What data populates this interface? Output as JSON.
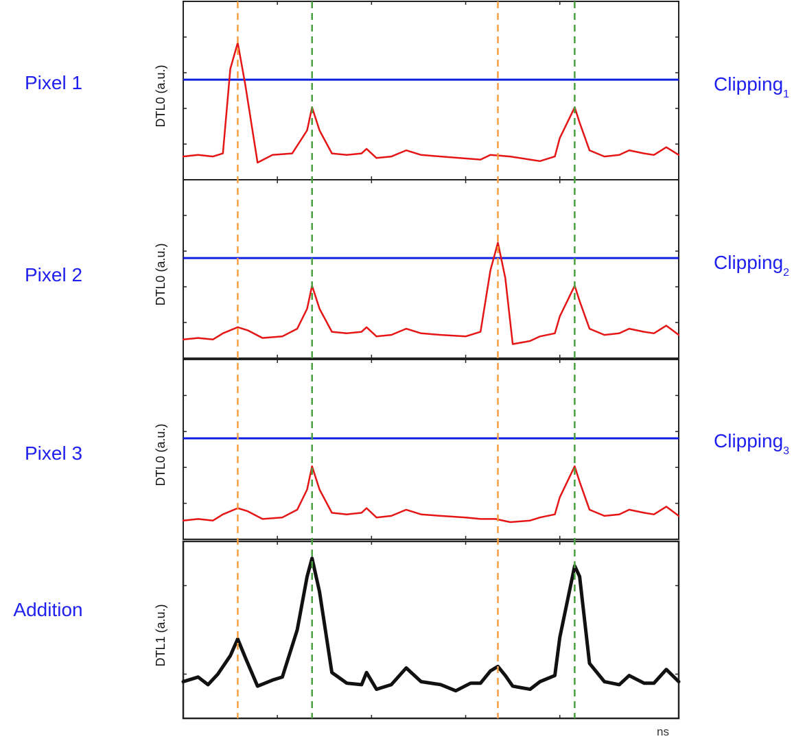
{
  "colors": {
    "label": "#2020ee",
    "clipping": "#1020e0",
    "signal": "#e51515",
    "sum": "#111111",
    "orange_marker": "#f5a040",
    "green_marker": "#4aa040",
    "frame": "#222222"
  },
  "x_unit": "ns",
  "chart_data": [
    {
      "type": "line",
      "row_label": "Pixel 1",
      "ylabel": "DTL0 (a.u.)",
      "clipping_label": "Clipping",
      "clipping_sub": "1",
      "clipping_level": 0.58,
      "series": [
        {
          "values": [
            [
              0,
              0.08
            ],
            [
              0.03,
              0.09
            ],
            [
              0.06,
              0.08
            ],
            [
              0.08,
              0.1
            ],
            [
              0.095,
              0.65
            ],
            [
              0.11,
              0.82
            ],
            [
              0.125,
              0.55
            ],
            [
              0.15,
              0.04
            ],
            [
              0.18,
              0.09
            ],
            [
              0.22,
              0.1
            ],
            [
              0.25,
              0.25
            ],
            [
              0.26,
              0.4
            ],
            [
              0.275,
              0.25
            ],
            [
              0.3,
              0.1
            ],
            [
              0.33,
              0.09
            ],
            [
              0.36,
              0.1
            ],
            [
              0.37,
              0.13
            ],
            [
              0.39,
              0.07
            ],
            [
              0.42,
              0.08
            ],
            [
              0.45,
              0.12
            ],
            [
              0.48,
              0.09
            ],
            [
              0.52,
              0.08
            ],
            [
              0.6,
              0.06
            ],
            [
              0.62,
              0.09
            ],
            [
              0.66,
              0.08
            ],
            [
              0.7,
              0.06
            ],
            [
              0.72,
              0.05
            ],
            [
              0.75,
              0.08
            ],
            [
              0.76,
              0.2
            ],
            [
              0.79,
              0.4
            ],
            [
              0.8,
              0.3
            ],
            [
              0.82,
              0.12
            ],
            [
              0.85,
              0.08
            ],
            [
              0.88,
              0.09
            ],
            [
              0.9,
              0.12
            ],
            [
              0.93,
              0.1
            ],
            [
              0.95,
              0.09
            ],
            [
              0.975,
              0.14
            ],
            [
              1,
              0.09
            ]
          ]
        }
      ]
    },
    {
      "type": "line",
      "row_label": "Pixel 2",
      "ylabel": "DTL0 (a.u.)",
      "clipping_label": "Clipping",
      "clipping_sub": "2",
      "clipping_level": 0.58,
      "series": [
        {
          "values": [
            [
              0,
              0.05
            ],
            [
              0.03,
              0.06
            ],
            [
              0.06,
              0.05
            ],
            [
              0.08,
              0.09
            ],
            [
              0.11,
              0.13
            ],
            [
              0.13,
              0.11
            ],
            [
              0.16,
              0.06
            ],
            [
              0.2,
              0.07
            ],
            [
              0.23,
              0.12
            ],
            [
              0.25,
              0.25
            ],
            [
              0.26,
              0.4
            ],
            [
              0.275,
              0.25
            ],
            [
              0.3,
              0.1
            ],
            [
              0.33,
              0.09
            ],
            [
              0.36,
              0.1
            ],
            [
              0.37,
              0.13
            ],
            [
              0.39,
              0.07
            ],
            [
              0.42,
              0.08
            ],
            [
              0.45,
              0.12
            ],
            [
              0.48,
              0.09
            ],
            [
              0.52,
              0.08
            ],
            [
              0.57,
              0.07
            ],
            [
              0.6,
              0.1
            ],
            [
              0.62,
              0.5
            ],
            [
              0.635,
              0.68
            ],
            [
              0.65,
              0.45
            ],
            [
              0.665,
              0.02
            ],
            [
              0.7,
              0.04
            ],
            [
              0.72,
              0.07
            ],
            [
              0.75,
              0.09
            ],
            [
              0.76,
              0.2
            ],
            [
              0.79,
              0.4
            ],
            [
              0.8,
              0.3
            ],
            [
              0.82,
              0.12
            ],
            [
              0.85,
              0.08
            ],
            [
              0.88,
              0.09
            ],
            [
              0.9,
              0.12
            ],
            [
              0.93,
              0.1
            ],
            [
              0.95,
              0.09
            ],
            [
              0.975,
              0.14
            ],
            [
              1,
              0.08
            ]
          ]
        }
      ]
    },
    {
      "type": "line",
      "row_label": "Pixel 3",
      "ylabel": "DTL0 (a.u.)",
      "clipping_label": "Clipping",
      "clipping_sub": "3",
      "clipping_level": 0.58,
      "series": [
        {
          "values": [
            [
              0,
              0.05
            ],
            [
              0.03,
              0.06
            ],
            [
              0.06,
              0.05
            ],
            [
              0.08,
              0.09
            ],
            [
              0.11,
              0.13
            ],
            [
              0.13,
              0.11
            ],
            [
              0.16,
              0.06
            ],
            [
              0.2,
              0.07
            ],
            [
              0.23,
              0.12
            ],
            [
              0.25,
              0.25
            ],
            [
              0.26,
              0.4
            ],
            [
              0.275,
              0.25
            ],
            [
              0.3,
              0.1
            ],
            [
              0.33,
              0.09
            ],
            [
              0.36,
              0.1
            ],
            [
              0.37,
              0.13
            ],
            [
              0.39,
              0.07
            ],
            [
              0.42,
              0.08
            ],
            [
              0.45,
              0.12
            ],
            [
              0.48,
              0.09
            ],
            [
              0.52,
              0.08
            ],
            [
              0.57,
              0.07
            ],
            [
              0.6,
              0.06
            ],
            [
              0.63,
              0.06
            ],
            [
              0.66,
              0.04
            ],
            [
              0.7,
              0.05
            ],
            [
              0.72,
              0.07
            ],
            [
              0.75,
              0.09
            ],
            [
              0.76,
              0.2
            ],
            [
              0.79,
              0.4
            ],
            [
              0.8,
              0.3
            ],
            [
              0.82,
              0.12
            ],
            [
              0.85,
              0.08
            ],
            [
              0.88,
              0.09
            ],
            [
              0.9,
              0.12
            ],
            [
              0.93,
              0.1
            ],
            [
              0.95,
              0.09
            ],
            [
              0.975,
              0.14
            ],
            [
              1,
              0.08
            ]
          ]
        }
      ]
    },
    {
      "type": "line",
      "row_label": "Addition",
      "ylabel": "DTL1 (a.u.)",
      "series": [
        {
          "values": [
            [
              0,
              0.16
            ],
            [
              0.03,
              0.19
            ],
            [
              0.05,
              0.14
            ],
            [
              0.07,
              0.21
            ],
            [
              0.095,
              0.33
            ],
            [
              0.11,
              0.44
            ],
            [
              0.125,
              0.32
            ],
            [
              0.15,
              0.13
            ],
            [
              0.18,
              0.17
            ],
            [
              0.2,
              0.19
            ],
            [
              0.23,
              0.5
            ],
            [
              0.25,
              0.85
            ],
            [
              0.26,
              0.97
            ],
            [
              0.275,
              0.75
            ],
            [
              0.3,
              0.22
            ],
            [
              0.33,
              0.15
            ],
            [
              0.36,
              0.14
            ],
            [
              0.37,
              0.22
            ],
            [
              0.39,
              0.11
            ],
            [
              0.42,
              0.14
            ],
            [
              0.45,
              0.25
            ],
            [
              0.48,
              0.16
            ],
            [
              0.52,
              0.14
            ],
            [
              0.55,
              0.1
            ],
            [
              0.58,
              0.15
            ],
            [
              0.6,
              0.15
            ],
            [
              0.62,
              0.23
            ],
            [
              0.635,
              0.26
            ],
            [
              0.65,
              0.2
            ],
            [
              0.665,
              0.13
            ],
            [
              0.7,
              0.11
            ],
            [
              0.72,
              0.16
            ],
            [
              0.75,
              0.2
            ],
            [
              0.76,
              0.45
            ],
            [
              0.79,
              0.92
            ],
            [
              0.8,
              0.85
            ],
            [
              0.82,
              0.28
            ],
            [
              0.85,
              0.16
            ],
            [
              0.88,
              0.14
            ],
            [
              0.9,
              0.2
            ],
            [
              0.93,
              0.15
            ],
            [
              0.95,
              0.15
            ],
            [
              0.975,
              0.24
            ],
            [
              1,
              0.16
            ]
          ]
        }
      ]
    }
  ],
  "markers": {
    "orange_x": [
      0.11,
      0.635
    ],
    "green_x": [
      0.26,
      0.79
    ]
  }
}
